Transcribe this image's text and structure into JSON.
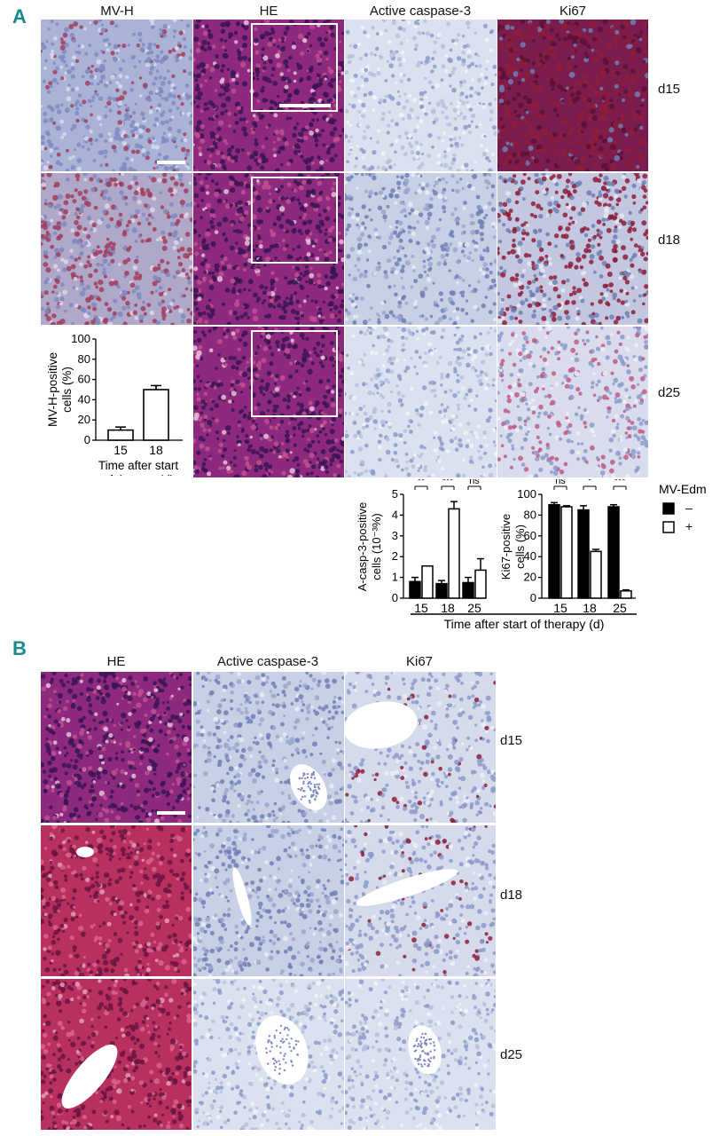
{
  "panel_a": {
    "letter": "A",
    "columns": [
      "MV-H",
      "HE",
      "Active caspase-3",
      "Ki67"
    ],
    "rows": [
      "d15",
      "d18",
      "d25"
    ]
  },
  "panel_b": {
    "letter": "B",
    "columns": [
      "HE",
      "Active caspase-3",
      "Ki67"
    ],
    "rows": [
      "d15",
      "d18",
      "d25"
    ]
  },
  "colors": {
    "he_bg": "#8e2a7e",
    "he_dark": "#3a1454",
    "ihc_bg": "#c8d0e6",
    "ihc_dark": "#6f7fb4",
    "stain_red": "#8e1c3a",
    "teal": "#1c8a8a"
  },
  "chart_data": [
    {
      "type": "bar",
      "categories": [
        "15",
        "18"
      ],
      "values": [
        10,
        50
      ],
      "errors": [
        3,
        4
      ],
      "ylabel": "MV-H-positive cells (%)",
      "ylabel_lines": [
        "MV-H-positive",
        "cells (%)"
      ],
      "xlabel_lines": [
        "Time after start",
        "of therapy (d)"
      ],
      "ylim": [
        0,
        100
      ],
      "yticks": [
        0,
        20,
        40,
        60,
        80,
        100
      ]
    },
    {
      "type": "bar",
      "categories": [
        "15",
        "18",
        "25"
      ],
      "series": [
        {
          "name": "–",
          "fill": "black",
          "values": [
            0.8,
            0.7,
            0.75
          ],
          "errors": [
            0.2,
            0.15,
            0.25
          ]
        },
        {
          "name": "+",
          "fill": "white",
          "values": [
            1.55,
            4.3,
            1.35
          ],
          "errors": [
            0.0,
            0.35,
            0.55
          ]
        }
      ],
      "ylabel_lines": [
        "A-casp-3-positive",
        "cells (10⁻³%)"
      ],
      "ylim": [
        0,
        5
      ],
      "yticks": [
        0,
        1,
        2,
        3,
        4,
        5
      ],
      "significance": [
        "**",
        "***",
        "ns"
      ]
    },
    {
      "type": "bar",
      "categories": [
        "15",
        "18",
        "25"
      ],
      "series": [
        {
          "name": "–",
          "fill": "black",
          "values": [
            90,
            85,
            88
          ],
          "errors": [
            2,
            4,
            2
          ]
        },
        {
          "name": "+",
          "fill": "white",
          "values": [
            88,
            45,
            7
          ],
          "errors": [
            1,
            2,
            1
          ]
        }
      ],
      "ylabel_lines": [
        "Ki67-positive",
        "cells (%)"
      ],
      "ylim": [
        0,
        100
      ],
      "yticks": [
        0,
        20,
        40,
        60,
        80,
        100
      ],
      "significance": [
        "ns",
        "*",
        "***"
      ]
    }
  ],
  "shared_xlabel": "Time after start of therapy (d)",
  "legend": {
    "title": "MV-Edm",
    "items": [
      {
        "fill": "black",
        "label": "–"
      },
      {
        "fill": "white",
        "label": "+"
      }
    ]
  }
}
